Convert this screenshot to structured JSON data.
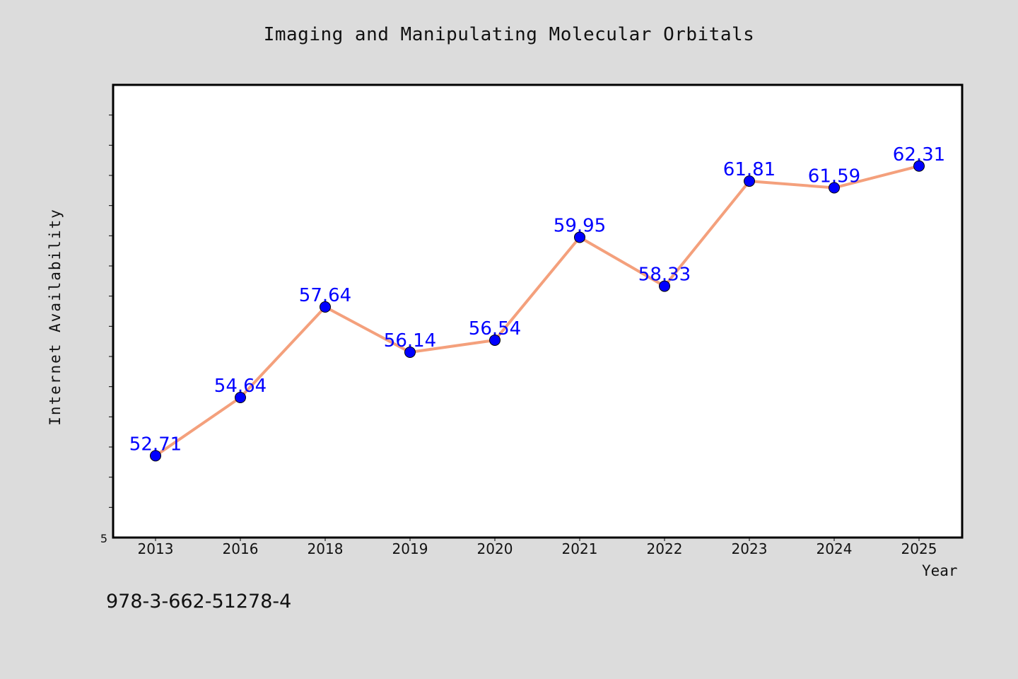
{
  "chart_data": {
    "type": "line",
    "title": "Imaging and Manipulating Molecular Orbitals",
    "xlabel": "Year",
    "ylabel": "Internet Availability",
    "categories": [
      "2013",
      "2016",
      "2018",
      "2019",
      "2020",
      "2021",
      "2022",
      "2023",
      "2024",
      "2025"
    ],
    "series": [
      {
        "values": [
          52.71,
          54.64,
          57.64,
          56.14,
          56.54,
          59.95,
          58.33,
          61.81,
          61.59,
          62.31
        ],
        "data_labels": [
          "52.71",
          "54.64",
          "57.64",
          "56.14",
          "56.54",
          "59.95",
          "58.33",
          "61.81",
          "61.59",
          "62.31"
        ]
      }
    ],
    "ylim": [
      50,
      65
    ],
    "y_tick_labels": [
      "5"
    ],
    "grid": false,
    "line_color": "#f4a07c",
    "marker_color": "#0000ff",
    "label_color": "#0000ff"
  },
  "footnote": "978-3-662-51278-4"
}
